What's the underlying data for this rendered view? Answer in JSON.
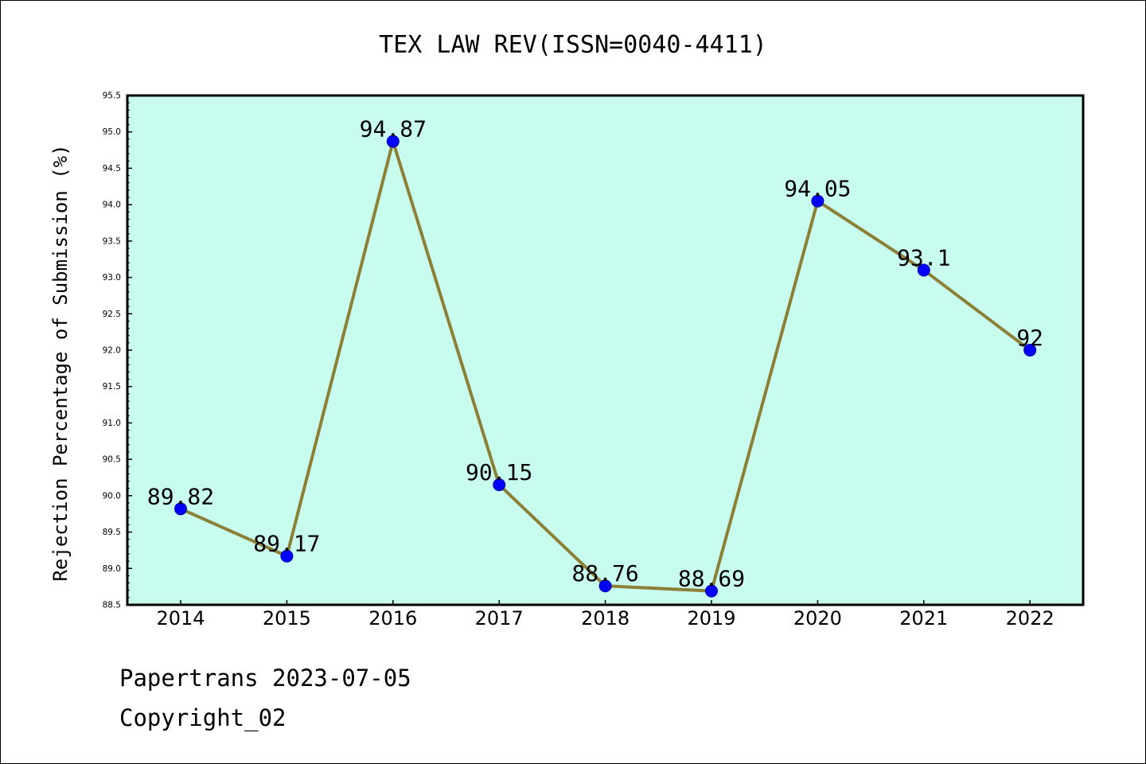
{
  "chart_data": {
    "type": "line",
    "title": "TEX LAW REV(ISSN=0040-4411)",
    "xlabel": "",
    "ylabel": "Rejection Percentage of Submission (%)",
    "categories": [
      "2014",
      "2015",
      "2016",
      "2017",
      "2018",
      "2019",
      "2020",
      "2021",
      "2022"
    ],
    "series": [
      {
        "values": [
          89.82,
          89.17,
          94.87,
          90.15,
          88.76,
          88.69,
          94.05,
          93.1,
          92
        ],
        "labels": [
          "89.82",
          "89.17",
          "94.87",
          "90.15",
          "88.76",
          "88.69",
          "94.05",
          "93.1",
          "92"
        ]
      }
    ],
    "ylim": [
      88.5,
      95.5
    ],
    "yticks": [
      "88.5",
      "89.0",
      "89.5",
      "90.0",
      "90.5",
      "91.0",
      "91.5",
      "92.0",
      "92.5",
      "93.0",
      "93.5",
      "94.0",
      "94.5",
      "95.0",
      "95.5"
    ],
    "grid": false,
    "colors": {
      "plot_background": "#c8fcee",
      "line": "#8c8037",
      "marker": "#0000ff"
    }
  },
  "footer": {
    "line1": "Papertrans 2023-07-05",
    "line2": "Copyright_02"
  }
}
